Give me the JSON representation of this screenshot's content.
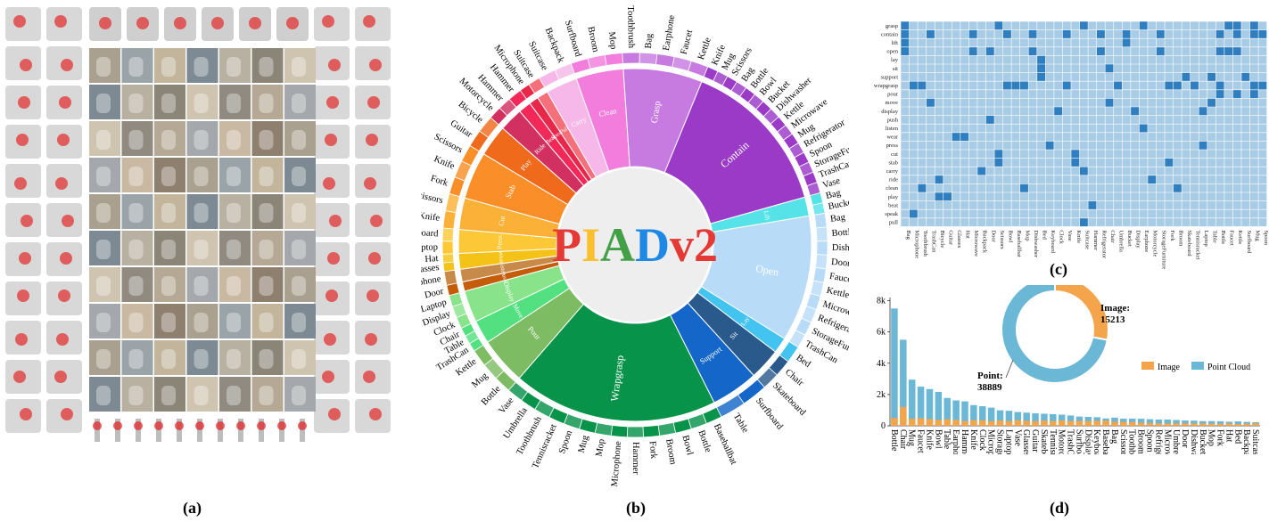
{
  "labels": {
    "a": "(a)",
    "b": "(b)",
    "c": "(c)",
    "d": "(d)"
  },
  "sunburst_title": [
    "P",
    "I",
    "A",
    "D",
    "v2"
  ],
  "sunburst_title_colors": [
    "#e53935",
    "#fbc02d",
    "#43a047",
    "#1e88e5",
    "#e53935"
  ],
  "gallery": {
    "object_tiles_top": 10,
    "rows": 11,
    "photo_cols": 7
  },
  "chart_data": [
    {
      "type": "sunburst",
      "inner": [
        {
          "name": "Carry",
          "value": 2,
          "color": "#f5b8e8"
        },
        {
          "name": "Clean",
          "value": 3,
          "color": "#f27ddc"
        },
        {
          "name": "Grasp",
          "value": 5,
          "color": "#c77be0"
        },
        {
          "name": "Contain",
          "value": 10,
          "color": "#9a3ac7"
        },
        {
          "name": "Lift",
          "value": 1.2,
          "color": "#55e3e8"
        },
        {
          "name": "Open",
          "value": 8,
          "color": "#b8dcf7"
        },
        {
          "name": "Lay",
          "value": 1,
          "color": "#42c3f0"
        },
        {
          "name": "Sit",
          "value": 2,
          "color": "#2a5a8c"
        },
        {
          "name": "Support",
          "value": 3,
          "color": "#1466c8"
        },
        {
          "name": "Wrapgrasp",
          "value": 13,
          "color": "#08934a"
        },
        {
          "name": "Pour",
          "value": 3,
          "color": "#7ebc64"
        },
        {
          "name": "Move",
          "value": 1.5,
          "color": "#52e080"
        },
        {
          "name": "Display",
          "value": 2,
          "color": "#88e38a"
        },
        {
          "name": "Push",
          "value": 0.6,
          "color": "#c45c08"
        },
        {
          "name": "Listen",
          "value": 0.8,
          "color": "#c88a48"
        },
        {
          "name": "Wear",
          "value": 1,
          "color": "#f5c218"
        },
        {
          "name": "Press",
          "value": 1.5,
          "color": "#fcc838"
        },
        {
          "name": "Cut",
          "value": 2,
          "color": "#fbb138"
        },
        {
          "name": "Stab",
          "value": 3,
          "color": "#fa8e28"
        },
        {
          "name": "Play",
          "value": 2,
          "color": "#f06a1c"
        },
        {
          "name": "Ride",
          "value": 1.5,
          "color": "#d23060"
        },
        {
          "name": "Beat",
          "value": 0.8,
          "color": "#f22858"
        },
        {
          "name": "Speak",
          "value": 0.6,
          "color": "#e8284a"
        },
        {
          "name": "Pull",
          "value": 0.7,
          "color": "#f5707a"
        }
      ],
      "outer": [
        {
          "parent": "Carry",
          "items": [
            "Suitcase",
            "Backpack"
          ]
        },
        {
          "parent": "Clean",
          "items": [
            "Surfboard",
            "Broom",
            "Mop"
          ]
        },
        {
          "parent": "Grasp",
          "items": [
            "Toothbrush",
            "Bag",
            "Earphone",
            "Faucet",
            "Kettle"
          ]
        },
        {
          "parent": "Contain",
          "items": [
            "Knife",
            "Mug",
            "Scissors",
            "Bag",
            "Bottle",
            "Bowl",
            "Bucket",
            "Dishwasher",
            "Kettle",
            "Microwave",
            "Mug",
            "Refrigerator",
            "Spoon",
            "StorageFurniture",
            "TrashCan",
            "Vase"
          ]
        },
        {
          "parent": "Lift",
          "items": [
            "Bag",
            "Bucket"
          ]
        },
        {
          "parent": "Open",
          "items": [
            "Bag",
            "Bottle",
            "Dishwasher",
            "Door",
            "Faucet",
            "Kettle",
            "Microwave",
            "Refrigerator",
            "StorageFurniture",
            "TrashCan"
          ]
        },
        {
          "parent": "Lay",
          "items": [
            "Bed"
          ]
        },
        {
          "parent": "Sit",
          "items": [
            "Chair",
            "Skateboard"
          ]
        },
        {
          "parent": "Support",
          "items": [
            "Surfboard",
            "Table"
          ]
        },
        {
          "parent": "Wrapgrasp",
          "items": [
            "Baseballbat",
            "Bottle",
            "Bowl",
            "Broom",
            "Fork",
            "Hammer",
            "Microphone",
            "Mop",
            "Mug",
            "Spoon",
            "Tennisracket",
            "Toothbrush",
            "Umbrella",
            "Vase"
          ]
        },
        {
          "parent": "Pour",
          "items": [
            "Bottle",
            "Mug",
            "Kettle"
          ]
        },
        {
          "parent": "Move",
          "items": [
            "TrashCan",
            "Table",
            "Chair"
          ]
        },
        {
          "parent": "Display",
          "items": [
            "Clock",
            "Display",
            "Laptop"
          ]
        },
        {
          "parent": "Push",
          "items": [
            "Door"
          ]
        },
        {
          "parent": "Listen",
          "items": [
            "Earphone"
          ]
        },
        {
          "parent": "Wear",
          "items": [
            "Glasses",
            "Hat"
          ]
        },
        {
          "parent": "Press",
          "items": [
            "Laptop",
            "Keyboard"
          ]
        },
        {
          "parent": "Cut",
          "items": [
            "Knife",
            "Scissors"
          ]
        },
        {
          "parent": "Stab",
          "items": [
            "Fork",
            "Knife",
            "Scissors"
          ]
        },
        {
          "parent": "Play",
          "items": [
            "Guitar",
            "Bicycle"
          ]
        },
        {
          "parent": "Ride",
          "items": [
            "Motorcycle",
            "Hammer"
          ]
        },
        {
          "parent": "Beat",
          "items": [
            "Hammer"
          ]
        },
        {
          "parent": "Speak",
          "items": [
            "Microphone"
          ]
        },
        {
          "parent": "Pull",
          "items": [
            "Suitcase"
          ]
        }
      ]
    },
    {
      "type": "heatmap",
      "rows": [
        "grasp",
        "contain",
        "lift",
        "open",
        "lay",
        "sit",
        "support",
        "wrapgrasp",
        "pour",
        "move",
        "display",
        "push",
        "listen",
        "wear",
        "press",
        "cut",
        "stab",
        "carry",
        "ride",
        "clean",
        "play",
        "beat",
        "speak",
        "pull"
      ],
      "cols": [
        "Bag",
        "Microphone",
        "Toothbrush",
        "TrashCan",
        "Bicycle",
        "Guitar",
        "Glasses",
        "Hat",
        "Microwave",
        "Backpack",
        "Door",
        "Scissors",
        "Bowl",
        "Baseballbat",
        "Mop",
        "Dishwasher",
        "Bed",
        "Keyboard",
        "Clock",
        "Vase",
        "Knife",
        "Suitcase",
        "Hammer",
        "Refrigerator",
        "Chair",
        "Umbrella",
        "Bucket",
        "Display",
        "Earphone",
        "Motorcycle",
        "StorageFurniture",
        "Fork",
        "Broom",
        "Skateboard",
        "Tennisracket",
        "Laptop",
        "Table",
        "Bottle",
        "Faucet",
        "Kettle",
        "Surfboard",
        "Mug",
        "Spoon"
      ],
      "cells": [
        [
          0,
          0
        ],
        [
          0,
          11
        ],
        [
          0,
          21
        ],
        [
          0,
          28
        ],
        [
          0,
          38
        ],
        [
          0,
          39
        ],
        [
          0,
          41
        ],
        [
          1,
          0
        ],
        [
          1,
          3
        ],
        [
          1,
          8
        ],
        [
          1,
          12
        ],
        [
          1,
          15
        ],
        [
          1,
          19
        ],
        [
          1,
          23
        ],
        [
          1,
          26
        ],
        [
          1,
          30
        ],
        [
          1,
          37
        ],
        [
          1,
          39
        ],
        [
          1,
          41
        ],
        [
          1,
          42
        ],
        [
          2,
          0
        ],
        [
          2,
          26
        ],
        [
          3,
          0
        ],
        [
          3,
          8
        ],
        [
          3,
          10
        ],
        [
          3,
          15
        ],
        [
          3,
          23
        ],
        [
          3,
          30
        ],
        [
          3,
          37
        ],
        [
          3,
          38
        ],
        [
          3,
          39
        ],
        [
          4,
          16
        ],
        [
          5,
          16
        ],
        [
          5,
          24
        ],
        [
          6,
          16
        ],
        [
          6,
          33
        ],
        [
          6,
          36
        ],
        [
          6,
          40
        ],
        [
          7,
          1
        ],
        [
          7,
          2
        ],
        [
          7,
          12
        ],
        [
          7,
          13
        ],
        [
          7,
          14
        ],
        [
          7,
          19
        ],
        [
          7,
          25
        ],
        [
          7,
          31
        ],
        [
          7,
          32
        ],
        [
          7,
          34
        ],
        [
          7,
          37
        ],
        [
          7,
          41
        ],
        [
          7,
          42
        ],
        [
          8,
          37
        ],
        [
          8,
          39
        ],
        [
          8,
          41
        ],
        [
          9,
          3
        ],
        [
          9,
          24
        ],
        [
          9,
          36
        ],
        [
          10,
          18
        ],
        [
          10,
          27
        ],
        [
          10,
          35
        ],
        [
          11,
          10
        ],
        [
          12,
          28
        ],
        [
          13,
          6
        ],
        [
          13,
          7
        ],
        [
          14,
          17
        ],
        [
          14,
          35
        ],
        [
          15,
          11
        ],
        [
          15,
          20
        ],
        [
          16,
          11
        ],
        [
          16,
          20
        ],
        [
          16,
          31
        ],
        [
          17,
          9
        ],
        [
          17,
          21
        ],
        [
          18,
          4
        ],
        [
          18,
          29
        ],
        [
          19,
          2
        ],
        [
          19,
          14
        ],
        [
          19,
          32
        ],
        [
          20,
          4
        ],
        [
          20,
          5
        ],
        [
          21,
          22
        ],
        [
          22,
          1
        ],
        [
          23,
          21
        ]
      ]
    },
    {
      "type": "donut",
      "slices": [
        {
          "name": "Image",
          "value": 15213,
          "label": "Image:",
          "value_label": "15213",
          "color": "#f4a54c"
        },
        {
          "name": "Point Cloud",
          "value": 38889,
          "label": "Point:",
          "value_label": "38889",
          "color": "#6bb7d6"
        }
      ]
    },
    {
      "type": "bar",
      "stacked": true,
      "categories": [
        "Bottle",
        "Chair",
        "Mug",
        "Faucet",
        "Knife",
        "Bowl",
        "Table",
        "Earphone",
        "Hammer",
        "Knife",
        "Clock",
        "Microphone",
        "StorageFurniture",
        "Laptop",
        "Vase",
        "Glasses",
        "Guitar",
        "Skateboard",
        "Tennisracket",
        "Motorcycle",
        "TrashCan",
        "Surfboard",
        "Display",
        "Keyboard",
        "Baseballbat",
        "Bag",
        "Scissors",
        "Toothbrush",
        "Broom",
        "Spoon",
        "Refrigerator",
        "Microwave",
        "Umbrella",
        "Door",
        "Dishwasher",
        "Bucket",
        "Mop",
        "Fork",
        "Hat",
        "Bed",
        "Backpack",
        "Suitcase"
      ],
      "series": [
        {
          "name": "Image",
          "color": "#f4a54c",
          "values": [
            500,
            1200,
            450,
            480,
            430,
            380,
            420,
            380,
            300,
            360,
            350,
            300,
            340,
            300,
            360,
            320,
            300,
            330,
            300,
            340,
            300,
            310,
            300,
            320,
            330,
            260,
            250,
            240,
            200,
            180,
            160,
            150,
            160,
            160,
            150,
            150,
            140,
            130,
            150,
            120,
            140,
            160
          ]
        },
        {
          "name": "Point Cloud",
          "color": "#6bb7d6",
          "values": [
            7500,
            5500,
            2950,
            2500,
            2350,
            2170,
            1780,
            1620,
            1560,
            1320,
            1250,
            1160,
            990,
            960,
            880,
            840,
            800,
            770,
            740,
            710,
            660,
            590,
            570,
            550,
            470,
            520,
            460,
            460,
            450,
            420,
            400,
            400,
            370,
            340,
            330,
            300,
            300,
            290,
            260,
            280,
            250,
            230
          ]
        }
      ],
      "yticks": [
        0,
        2000,
        4000,
        6000,
        8000
      ],
      "ytick_labels": [
        "0",
        "2k",
        "4k",
        "6k",
        "8k"
      ],
      "ylim": [
        0,
        8200
      ],
      "legend": "right"
    }
  ]
}
